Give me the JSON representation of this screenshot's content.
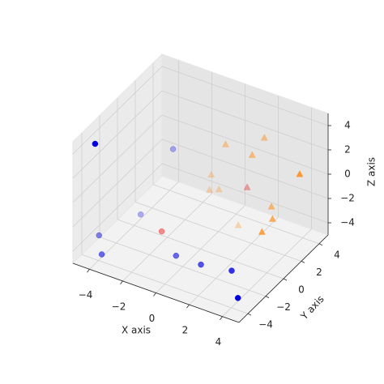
{
  "chart_data": {
    "type": "scatter3d",
    "x_label": "X axis",
    "y_label": "Y axis",
    "z_label": "Z axis",
    "xlim": [
      -5,
      5
    ],
    "ylim": [
      -5,
      5
    ],
    "zlim": [
      -5,
      5
    ],
    "xticks": [
      {
        "value": -4,
        "label": "−4"
      },
      {
        "value": -2,
        "label": "−2"
      },
      0,
      2,
      4
    ],
    "yticks": [
      {
        "value": -4,
        "label": "−4"
      },
      {
        "value": -2,
        "label": "−2"
      },
      0,
      2,
      4
    ],
    "zticks": [
      {
        "value": -4,
        "label": "−4"
      },
      {
        "value": -2,
        "label": "−2"
      },
      0,
      2,
      4
    ],
    "grid": true,
    "series": [
      {
        "marker": "circle",
        "color": "#0000dd",
        "x": [
          -4.2,
          -3.8,
          -3.6,
          -4.5,
          -3.8,
          -0.4,
          1.1,
          2.95,
          4.4
        ],
        "y": [
          -4,
          4,
          0,
          -3,
          -4,
          -2,
          -2,
          -2,
          -4
        ],
        "z": [
          4.5,
          -1.5,
          -3.9,
          -3.9,
          -4.4,
          -4.3,
          -4.3,
          -3.9,
          -4.0
        ]
      },
      {
        "marker": "triangle",
        "color": "#ff8c1a",
        "x": [
          -0.1,
          1.7,
          1.5,
          4.9,
          -1.5,
          -1.6,
          -0.5,
          3.2,
          3.8,
          1.2,
          3.7
        ],
        "y": [
          3,
          4,
          3,
          2,
          4,
          4,
          3,
          2,
          1,
          2,
          0
        ],
        "z": [
          1.4,
          2.1,
          1.3,
          2.1,
          -2.5,
          -3.8,
          -2.5,
          -1.4,
          -1.4,
          -3.9,
          -1.8
        ]
      },
      {
        "marker": "circle",
        "color": "#ee0000",
        "x": [
          -1.8
        ],
        "y": [
          -1
        ],
        "z": [
          -3.7
        ]
      },
      {
        "marker": "triangle",
        "color": "#dd0000",
        "x": [
          1.2
        ],
        "y": [
          3
        ],
        "z": [
          -1.5
        ]
      }
    ]
  }
}
